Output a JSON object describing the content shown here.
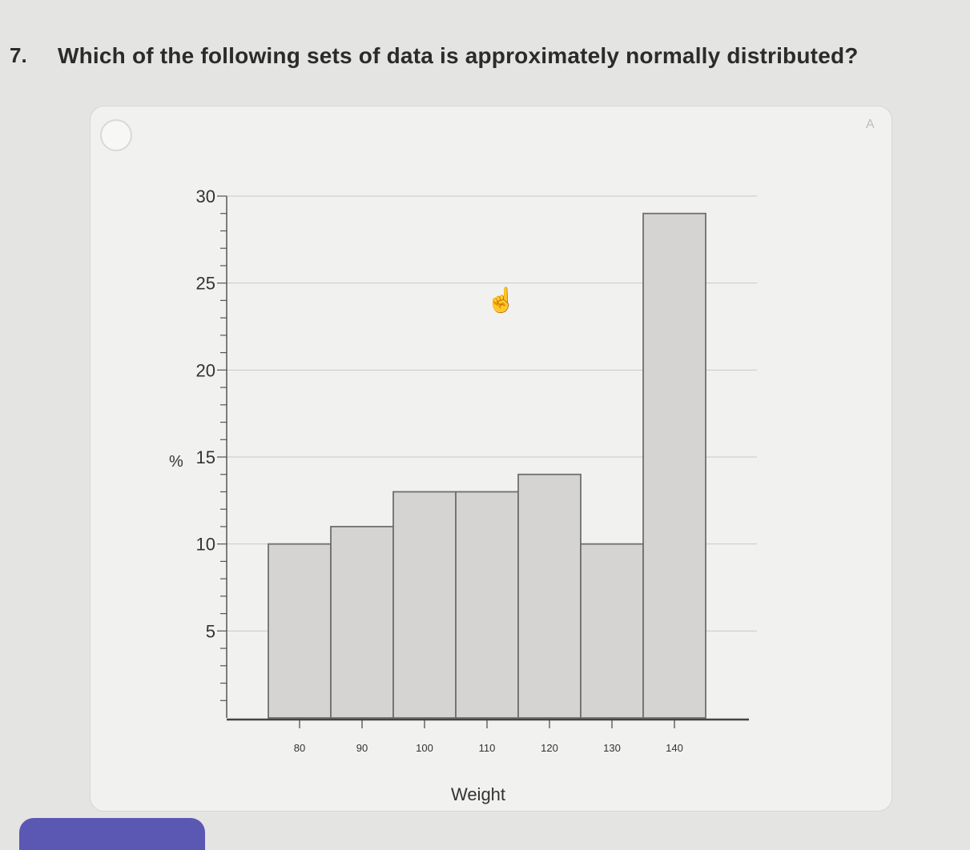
{
  "question": {
    "number": "7.",
    "text": "Which of the following sets of data is approximately normally distributed?"
  },
  "option": {
    "letter": "A"
  },
  "chart_data": {
    "type": "bar",
    "categories": [
      "80",
      "90",
      "100",
      "110",
      "120",
      "130",
      "140"
    ],
    "values": [
      10,
      11,
      13,
      13,
      14,
      10,
      29
    ],
    "xlabel": "Weight",
    "ylabel": "%",
    "ylim": [
      0,
      30
    ],
    "yticks": [
      5,
      10,
      15,
      20,
      25,
      30
    ],
    "grid": true,
    "bar_color": "#d6d4d3",
    "bar_stroke": "#6f6f6f"
  }
}
